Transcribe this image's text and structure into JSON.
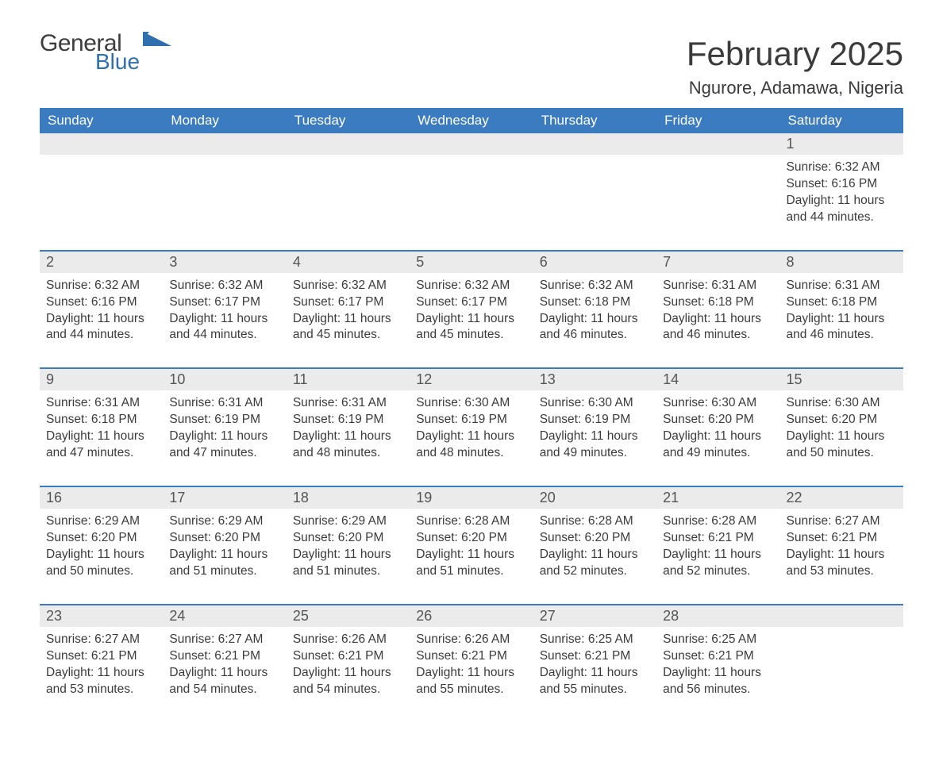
{
  "brand": {
    "name_part1": "General",
    "name_part2": "Blue",
    "color_general": "#3d3d3d",
    "color_blue": "#2f6fb0",
    "flag_color": "#2f6fb0"
  },
  "header": {
    "month_year": "February 2025",
    "location": "Ngurore, Adamawa, Nigeria"
  },
  "theme": {
    "header_bg": "#3b7bbf",
    "header_text": "#ffffff",
    "daynum_bg": "#ebebeb",
    "daynum_text": "#555555",
    "body_text": "#3b3b3b",
    "week_separator": "#3b7bbf",
    "page_bg": "#ffffff"
  },
  "weekdays": [
    "Sunday",
    "Monday",
    "Tuesday",
    "Wednesday",
    "Thursday",
    "Friday",
    "Saturday"
  ],
  "weeks": [
    [
      null,
      null,
      null,
      null,
      null,
      null,
      {
        "n": "1",
        "sunrise": "Sunrise: 6:32 AM",
        "sunset": "Sunset: 6:16 PM",
        "daylight": "Daylight: 11 hours and 44 minutes."
      }
    ],
    [
      {
        "n": "2",
        "sunrise": "Sunrise: 6:32 AM",
        "sunset": "Sunset: 6:16 PM",
        "daylight": "Daylight: 11 hours and 44 minutes."
      },
      {
        "n": "3",
        "sunrise": "Sunrise: 6:32 AM",
        "sunset": "Sunset: 6:17 PM",
        "daylight": "Daylight: 11 hours and 44 minutes."
      },
      {
        "n": "4",
        "sunrise": "Sunrise: 6:32 AM",
        "sunset": "Sunset: 6:17 PM",
        "daylight": "Daylight: 11 hours and 45 minutes."
      },
      {
        "n": "5",
        "sunrise": "Sunrise: 6:32 AM",
        "sunset": "Sunset: 6:17 PM",
        "daylight": "Daylight: 11 hours and 45 minutes."
      },
      {
        "n": "6",
        "sunrise": "Sunrise: 6:32 AM",
        "sunset": "Sunset: 6:18 PM",
        "daylight": "Daylight: 11 hours and 46 minutes."
      },
      {
        "n": "7",
        "sunrise": "Sunrise: 6:31 AM",
        "sunset": "Sunset: 6:18 PM",
        "daylight": "Daylight: 11 hours and 46 minutes."
      },
      {
        "n": "8",
        "sunrise": "Sunrise: 6:31 AM",
        "sunset": "Sunset: 6:18 PM",
        "daylight": "Daylight: 11 hours and 46 minutes."
      }
    ],
    [
      {
        "n": "9",
        "sunrise": "Sunrise: 6:31 AM",
        "sunset": "Sunset: 6:18 PM",
        "daylight": "Daylight: 11 hours and 47 minutes."
      },
      {
        "n": "10",
        "sunrise": "Sunrise: 6:31 AM",
        "sunset": "Sunset: 6:19 PM",
        "daylight": "Daylight: 11 hours and 47 minutes."
      },
      {
        "n": "11",
        "sunrise": "Sunrise: 6:31 AM",
        "sunset": "Sunset: 6:19 PM",
        "daylight": "Daylight: 11 hours and 48 minutes."
      },
      {
        "n": "12",
        "sunrise": "Sunrise: 6:30 AM",
        "sunset": "Sunset: 6:19 PM",
        "daylight": "Daylight: 11 hours and 48 minutes."
      },
      {
        "n": "13",
        "sunrise": "Sunrise: 6:30 AM",
        "sunset": "Sunset: 6:19 PM",
        "daylight": "Daylight: 11 hours and 49 minutes."
      },
      {
        "n": "14",
        "sunrise": "Sunrise: 6:30 AM",
        "sunset": "Sunset: 6:20 PM",
        "daylight": "Daylight: 11 hours and 49 minutes."
      },
      {
        "n": "15",
        "sunrise": "Sunrise: 6:30 AM",
        "sunset": "Sunset: 6:20 PM",
        "daylight": "Daylight: 11 hours and 50 minutes."
      }
    ],
    [
      {
        "n": "16",
        "sunrise": "Sunrise: 6:29 AM",
        "sunset": "Sunset: 6:20 PM",
        "daylight": "Daylight: 11 hours and 50 minutes."
      },
      {
        "n": "17",
        "sunrise": "Sunrise: 6:29 AM",
        "sunset": "Sunset: 6:20 PM",
        "daylight": "Daylight: 11 hours and 51 minutes."
      },
      {
        "n": "18",
        "sunrise": "Sunrise: 6:29 AM",
        "sunset": "Sunset: 6:20 PM",
        "daylight": "Daylight: 11 hours and 51 minutes."
      },
      {
        "n": "19",
        "sunrise": "Sunrise: 6:28 AM",
        "sunset": "Sunset: 6:20 PM",
        "daylight": "Daylight: 11 hours and 51 minutes."
      },
      {
        "n": "20",
        "sunrise": "Sunrise: 6:28 AM",
        "sunset": "Sunset: 6:20 PM",
        "daylight": "Daylight: 11 hours and 52 minutes."
      },
      {
        "n": "21",
        "sunrise": "Sunrise: 6:28 AM",
        "sunset": "Sunset: 6:21 PM",
        "daylight": "Daylight: 11 hours and 52 minutes."
      },
      {
        "n": "22",
        "sunrise": "Sunrise: 6:27 AM",
        "sunset": "Sunset: 6:21 PM",
        "daylight": "Daylight: 11 hours and 53 minutes."
      }
    ],
    [
      {
        "n": "23",
        "sunrise": "Sunrise: 6:27 AM",
        "sunset": "Sunset: 6:21 PM",
        "daylight": "Daylight: 11 hours and 53 minutes."
      },
      {
        "n": "24",
        "sunrise": "Sunrise: 6:27 AM",
        "sunset": "Sunset: 6:21 PM",
        "daylight": "Daylight: 11 hours and 54 minutes."
      },
      {
        "n": "25",
        "sunrise": "Sunrise: 6:26 AM",
        "sunset": "Sunset: 6:21 PM",
        "daylight": "Daylight: 11 hours and 54 minutes."
      },
      {
        "n": "26",
        "sunrise": "Sunrise: 6:26 AM",
        "sunset": "Sunset: 6:21 PM",
        "daylight": "Daylight: 11 hours and 55 minutes."
      },
      {
        "n": "27",
        "sunrise": "Sunrise: 6:25 AM",
        "sunset": "Sunset: 6:21 PM",
        "daylight": "Daylight: 11 hours and 55 minutes."
      },
      {
        "n": "28",
        "sunrise": "Sunrise: 6:25 AM",
        "sunset": "Sunset: 6:21 PM",
        "daylight": "Daylight: 11 hours and 56 minutes."
      },
      null
    ]
  ]
}
